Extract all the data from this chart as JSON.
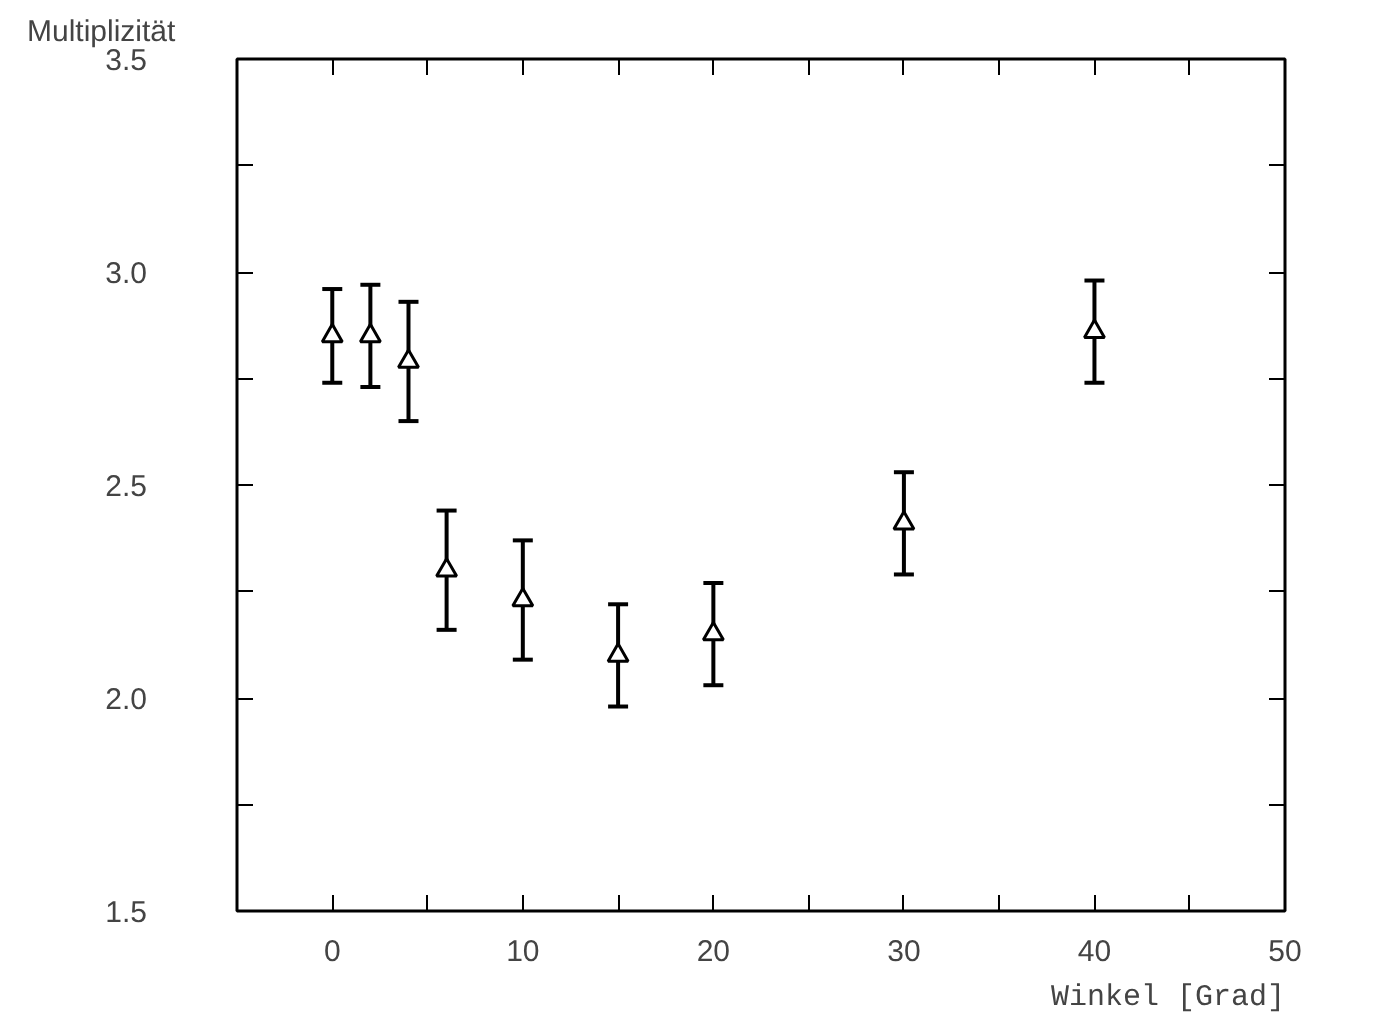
{
  "chart_data": {
    "type": "scatter",
    "xlabel": "Winkel [Grad]",
    "ylabel": "Multiplizität",
    "x": [
      0,
      2,
      4,
      6,
      10,
      15,
      20,
      30,
      40
    ],
    "values": [
      2.85,
      2.85,
      2.79,
      2.3,
      2.23,
      2.1,
      2.15,
      2.41,
      2.86
    ],
    "errors": [
      0.11,
      0.12,
      0.14,
      0.14,
      0.14,
      0.12,
      0.12,
      0.12,
      0.12
    ],
    "color": "#000000",
    "marker": "triangle",
    "xlim": [
      -5,
      50
    ],
    "ylim": [
      1.5,
      3.5
    ],
    "xticks": [
      {
        "value": -5,
        "label": null
      },
      0,
      {
        "value": 5,
        "label": null
      },
      10,
      {
        "value": 15,
        "label": null
      },
      20,
      {
        "value": 25,
        "label": null
      },
      30,
      {
        "value": 35,
        "label": null
      },
      40,
      {
        "value": 45,
        "label": null
      },
      50
    ],
    "yticks": [
      1.5,
      {
        "value": 1.75,
        "label": null
      },
      {
        "value": 2,
        "label": "2.0"
      },
      {
        "value": 2.25,
        "label": null
      },
      2.5,
      {
        "value": 2.75,
        "label": null
      },
      {
        "value": 3,
        "label": "3.0"
      },
      {
        "value": 3.25,
        "label": null
      },
      3.5
    ],
    "grid": false
  }
}
